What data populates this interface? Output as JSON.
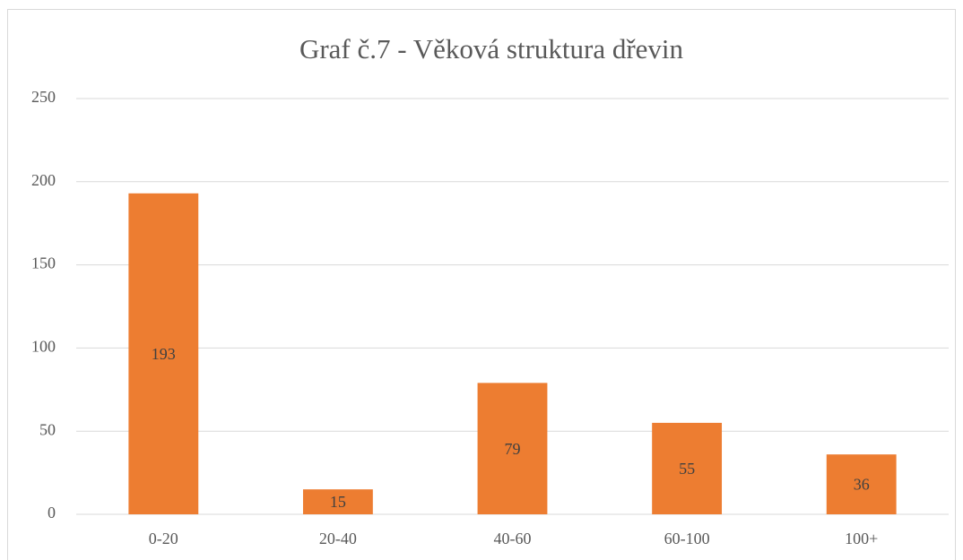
{
  "chart_data": {
    "type": "bar",
    "title": "Graf č.7 - Věková struktura dřevin",
    "categories": [
      "0-20",
      "20-40",
      "40-60",
      "60-100",
      "100+"
    ],
    "values": [
      193,
      15,
      79,
      55,
      36
    ],
    "color": "#ed7d31",
    "ylim": [
      0,
      250
    ],
    "yticks": [
      0,
      50,
      100,
      150,
      200,
      250
    ],
    "grid": true,
    "data_labels": true
  }
}
